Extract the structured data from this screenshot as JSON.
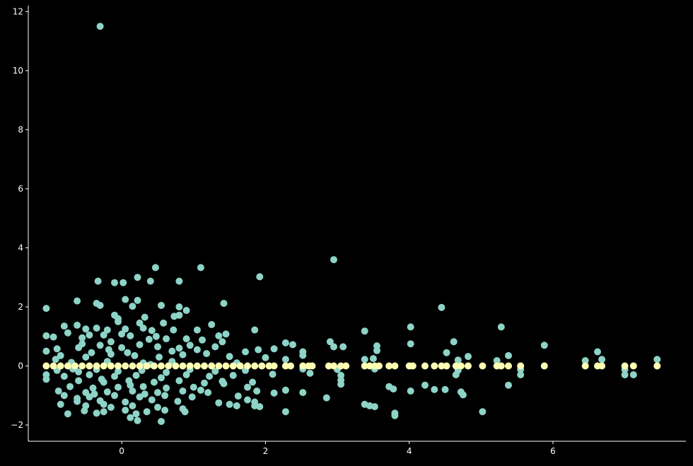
{
  "chart_data": {
    "type": "scatter",
    "title": "",
    "xlabel": "",
    "ylabel": "",
    "xlim": [
      -1.3,
      7.85
    ],
    "ylim": [
      -2.55,
      12.2
    ],
    "xticks": [
      0,
      2,
      4,
      6
    ],
    "yticks": [
      -2,
      0,
      2,
      4,
      6,
      8,
      10,
      12
    ],
    "xtick_labels": [
      "0",
      "2",
      "4",
      "6"
    ],
    "ytick_labels": [
      "−2",
      "0",
      "2",
      "4",
      "6",
      "8",
      "10",
      "12"
    ],
    "grid": false,
    "legend": "none",
    "series": [
      {
        "color": "#8dd3c7",
        "points": [
          [
            -0.3,
            11.5
          ],
          [
            2.95,
            3.6
          ],
          [
            0.47,
            3.33
          ],
          [
            1.1,
            3.33
          ],
          [
            1.92,
            3.02
          ],
          [
            0.22,
            3.0
          ],
          [
            -0.33,
            2.87
          ],
          [
            -0.1,
            2.82
          ],
          [
            0.02,
            2.82
          ],
          [
            0.4,
            2.87
          ],
          [
            0.8,
            2.87
          ],
          [
            -0.62,
            2.2
          ],
          [
            0.22,
            2.22
          ],
          [
            0.05,
            2.25
          ],
          [
            -0.35,
            2.12
          ],
          [
            -0.3,
            2.05
          ],
          [
            0.15,
            2.02
          ],
          [
            0.55,
            2.05
          ],
          [
            0.8,
            2.0
          ],
          [
            0.9,
            1.88
          ],
          [
            1.42,
            2.12
          ],
          [
            -1.05,
            1.95
          ],
          [
            4.45,
            1.98
          ],
          [
            -0.1,
            1.72
          ],
          [
            -0.05,
            1.6
          ],
          [
            0.32,
            1.65
          ],
          [
            0.73,
            1.68
          ],
          [
            0.8,
            1.72
          ],
          [
            -0.05,
            1.5
          ],
          [
            0.25,
            1.45
          ],
          [
            0.58,
            1.45
          ],
          [
            3.38,
            1.18
          ],
          [
            4.02,
            1.32
          ],
          [
            5.28,
            1.32
          ],
          [
            1.85,
            1.22
          ],
          [
            1.25,
            1.4
          ],
          [
            1.05,
            1.22
          ],
          [
            -0.8,
            1.35
          ],
          [
            -0.62,
            1.38
          ],
          [
            -0.5,
            1.25
          ],
          [
            -0.35,
            1.28
          ],
          [
            -0.2,
            1.22
          ],
          [
            0.05,
            1.25
          ],
          [
            0.3,
            1.28
          ],
          [
            0.42,
            1.2
          ],
          [
            0.72,
            1.22
          ],
          [
            -1.05,
            1.02
          ],
          [
            -0.95,
            0.98
          ],
          [
            -0.75,
            1.12
          ],
          [
            -0.55,
            0.95
          ],
          [
            -0.25,
            1.05
          ],
          [
            0.12,
            1.02
          ],
          [
            0.38,
            0.9
          ],
          [
            0.62,
            0.92
          ],
          [
            0.9,
            0.92
          ],
          [
            1.12,
            0.88
          ],
          [
            1.35,
            1.02
          ],
          [
            1.45,
            1.08
          ],
          [
            1.4,
            0.82
          ],
          [
            2.28,
            0.78
          ],
          [
            2.38,
            0.72
          ],
          [
            2.9,
            0.82
          ],
          [
            3.08,
            0.65
          ],
          [
            4.02,
            0.75
          ],
          [
            4.62,
            0.82
          ],
          [
            5.88,
            0.7
          ],
          [
            -1.05,
            0.5
          ],
          [
            -0.9,
            0.58
          ],
          [
            -0.6,
            0.62
          ],
          [
            -0.3,
            0.7
          ],
          [
            0.0,
            0.62
          ],
          [
            0.25,
            0.72
          ],
          [
            0.5,
            0.65
          ],
          [
            0.8,
            0.6
          ],
          [
            1.05,
            0.55
          ],
          [
            1.3,
            0.65
          ],
          [
            1.72,
            0.48
          ],
          [
            1.9,
            0.55
          ],
          [
            2.12,
            0.58
          ],
          [
            2.52,
            0.48
          ],
          [
            2.52,
            0.36
          ],
          [
            2.95,
            0.65
          ],
          [
            3.55,
            0.68
          ],
          [
            3.55,
            0.52
          ],
          [
            4.52,
            0.45
          ],
          [
            4.82,
            0.32
          ],
          [
            5.38,
            0.35
          ],
          [
            6.62,
            0.48
          ],
          [
            -0.85,
            0.35
          ],
          [
            -0.5,
            0.3
          ],
          [
            -0.15,
            0.4
          ],
          [
            0.18,
            0.35
          ],
          [
            0.52,
            0.3
          ],
          [
            0.85,
            0.38
          ],
          [
            1.18,
            0.42
          ],
          [
            1.5,
            0.32
          ],
          [
            2.0,
            0.28
          ],
          [
            2.28,
            0.22
          ],
          [
            3.38,
            0.22
          ],
          [
            3.5,
            0.25
          ],
          [
            4.68,
            0.2
          ],
          [
            5.22,
            0.18
          ],
          [
            6.45,
            0.18
          ],
          [
            6.68,
            0.22
          ],
          [
            7.45,
            0.22
          ],
          [
            -0.7,
            0.12
          ],
          [
            -0.2,
            0.15
          ],
          [
            0.3,
            0.1
          ],
          [
            0.7,
            0.15
          ],
          [
            1.6,
            0.1
          ],
          [
            -0.9,
            -0.15
          ],
          [
            -0.6,
            -0.2
          ],
          [
            -0.35,
            -0.12
          ],
          [
            -0.05,
            -0.18
          ],
          [
            0.28,
            -0.15
          ],
          [
            0.62,
            -0.22
          ],
          [
            0.95,
            -0.12
          ],
          [
            1.3,
            -0.18
          ],
          [
            1.72,
            -0.15
          ],
          [
            2.52,
            -0.1
          ],
          [
            3.0,
            -0.12
          ],
          [
            3.52,
            -0.1
          ],
          [
            4.68,
            -0.15
          ],
          [
            5.55,
            -0.12
          ],
          [
            7.0,
            -0.12
          ],
          [
            -1.05,
            -0.3
          ],
          [
            -0.8,
            -0.35
          ],
          [
            -0.45,
            -0.3
          ],
          [
            -0.1,
            -0.35
          ],
          [
            0.2,
            -0.32
          ],
          [
            0.55,
            -0.4
          ],
          [
            0.9,
            -0.3
          ],
          [
            1.22,
            -0.35
          ],
          [
            1.55,
            -0.32
          ],
          [
            2.1,
            -0.28
          ],
          [
            2.62,
            -0.25
          ],
          [
            3.05,
            -0.32
          ],
          [
            4.65,
            -0.3
          ],
          [
            5.55,
            -0.3
          ],
          [
            7.0,
            -0.3
          ],
          [
            7.12,
            -0.3
          ],
          [
            -1.05,
            -0.45
          ],
          [
            -0.6,
            -0.5
          ],
          [
            -0.25,
            -0.55
          ],
          [
            0.1,
            -0.5
          ],
          [
            0.45,
            -0.55
          ],
          [
            0.8,
            -0.5
          ],
          [
            1.15,
            -0.58
          ],
          [
            1.4,
            -0.52
          ],
          [
            1.82,
            -0.55
          ],
          [
            3.05,
            -0.48
          ],
          [
            -0.72,
            -0.7
          ],
          [
            -0.4,
            -0.75
          ],
          [
            -0.05,
            -0.72
          ],
          [
            0.3,
            -0.7
          ],
          [
            0.62,
            -0.75
          ],
          [
            1.0,
            -0.72
          ],
          [
            1.42,
            -0.6
          ],
          [
            1.75,
            -0.72
          ],
          [
            3.05,
            -0.62
          ],
          [
            3.72,
            -0.7
          ],
          [
            5.38,
            -0.65
          ],
          [
            4.22,
            -0.65
          ],
          [
            -0.88,
            -0.85
          ],
          [
            -0.5,
            -0.9
          ],
          [
            -0.2,
            -0.88
          ],
          [
            0.15,
            -0.85
          ],
          [
            0.5,
            -0.9
          ],
          [
            0.85,
            -0.85
          ],
          [
            1.2,
            -0.9
          ],
          [
            1.88,
            -0.85
          ],
          [
            2.28,
            -0.82
          ],
          [
            2.52,
            -0.9
          ],
          [
            3.78,
            -0.78
          ],
          [
            4.02,
            -0.85
          ],
          [
            4.35,
            -0.8
          ],
          [
            4.5,
            -0.8
          ],
          [
            4.72,
            -0.88
          ],
          [
            -0.8,
            -1.0
          ],
          [
            -0.45,
            -1.05
          ],
          [
            -0.1,
            -1.0
          ],
          [
            0.25,
            -1.05
          ],
          [
            0.6,
            -1.0
          ],
          [
            0.98,
            -1.05
          ],
          [
            1.62,
            -1.02
          ],
          [
            2.12,
            -0.92
          ],
          [
            2.85,
            -1.08
          ],
          [
            4.75,
            -0.98
          ],
          [
            -0.62,
            -1.2
          ],
          [
            -0.3,
            -1.18
          ],
          [
            0.05,
            -1.22
          ],
          [
            0.42,
            -1.15
          ],
          [
            0.78,
            -1.2
          ],
          [
            1.35,
            -1.25
          ],
          [
            1.5,
            -1.3
          ],
          [
            1.75,
            -1.15
          ],
          [
            1.85,
            -1.22
          ],
          [
            -0.85,
            -1.3
          ],
          [
            -0.5,
            -1.35
          ],
          [
            -0.15,
            -1.4
          ],
          [
            0.15,
            -1.35
          ],
          [
            0.5,
            -1.4
          ],
          [
            0.85,
            -1.45
          ],
          [
            1.6,
            -1.35
          ],
          [
            1.85,
            -1.35
          ],
          [
            1.92,
            -1.38
          ],
          [
            3.38,
            -1.3
          ],
          [
            3.45,
            -1.35
          ],
          [
            3.52,
            -1.38
          ],
          [
            -0.52,
            -1.52
          ],
          [
            -0.25,
            -1.55
          ],
          [
            0.05,
            -1.5
          ],
          [
            0.35,
            -1.55
          ],
          [
            0.6,
            -1.5
          ],
          [
            0.88,
            -1.55
          ],
          [
            -0.75,
            -1.62
          ],
          [
            -0.35,
            -1.6
          ],
          [
            0.2,
            -1.62
          ],
          [
            2.28,
            -1.55
          ],
          [
            3.8,
            -1.6
          ],
          [
            3.8,
            -1.68
          ],
          [
            5.02,
            -1.55
          ],
          [
            0.22,
            -1.85
          ],
          [
            0.55,
            -1.88
          ],
          [
            0.12,
            -1.75
          ],
          [
            -0.68,
            -0.1
          ],
          [
            -0.42,
            0.45
          ],
          [
            -0.15,
            0.82
          ],
          [
            0.08,
            0.45
          ],
          [
            -0.28,
            -0.45
          ],
          [
            0.4,
            0.05
          ],
          [
            -0.55,
            0.75
          ],
          [
            -0.38,
            -0.95
          ],
          [
            0.12,
            -0.65
          ],
          [
            -0.18,
            0.55
          ],
          [
            0.7,
            0.5
          ],
          [
            -0.92,
            0.22
          ],
          [
            0.32,
            -0.95
          ],
          [
            -0.62,
            -1.1
          ],
          [
            0.0,
            1.08
          ],
          [
            -0.45,
            1.05
          ],
          [
            0.95,
            0.7
          ],
          [
            1.1,
            -0.82
          ],
          [
            -0.25,
            -1.3
          ],
          [
            0.48,
            1.0
          ]
        ]
      },
      {
        "color": "#ffffb3",
        "points": [
          [
            -1.05,
            0
          ],
          [
            -0.95,
            0
          ],
          [
            -0.85,
            0
          ],
          [
            -0.75,
            0
          ],
          [
            -0.65,
            0
          ],
          [
            -0.55,
            0
          ],
          [
            -0.45,
            0
          ],
          [
            -0.35,
            0
          ],
          [
            -0.25,
            0
          ],
          [
            -0.15,
            0
          ],
          [
            -0.05,
            0
          ],
          [
            0.05,
            0
          ],
          [
            0.15,
            0
          ],
          [
            0.25,
            0
          ],
          [
            0.35,
            0
          ],
          [
            0.45,
            0
          ],
          [
            0.55,
            0
          ],
          [
            0.65,
            0
          ],
          [
            0.75,
            0
          ],
          [
            0.85,
            0
          ],
          [
            0.95,
            0
          ],
          [
            1.05,
            0
          ],
          [
            1.15,
            0
          ],
          [
            1.25,
            0
          ],
          [
            1.35,
            0
          ],
          [
            1.45,
            0
          ],
          [
            1.55,
            0
          ],
          [
            1.65,
            0
          ],
          [
            1.75,
            0
          ],
          [
            1.85,
            0
          ],
          [
            1.95,
            0
          ],
          [
            2.05,
            0
          ],
          [
            2.12,
            0
          ],
          [
            2.28,
            0
          ],
          [
            2.35,
            0
          ],
          [
            2.52,
            0
          ],
          [
            2.6,
            0
          ],
          [
            2.65,
            0
          ],
          [
            2.88,
            0
          ],
          [
            2.95,
            0
          ],
          [
            3.05,
            0
          ],
          [
            3.12,
            0
          ],
          [
            3.38,
            0
          ],
          [
            3.45,
            0
          ],
          [
            3.52,
            0
          ],
          [
            3.58,
            0
          ],
          [
            3.72,
            0
          ],
          [
            3.8,
            0
          ],
          [
            4.0,
            0
          ],
          [
            4.05,
            0
          ],
          [
            4.22,
            0
          ],
          [
            4.35,
            0
          ],
          [
            4.45,
            0
          ],
          [
            4.52,
            0
          ],
          [
            4.65,
            0
          ],
          [
            4.72,
            0
          ],
          [
            4.82,
            0
          ],
          [
            5.02,
            0
          ],
          [
            5.22,
            0
          ],
          [
            5.28,
            0
          ],
          [
            5.38,
            0
          ],
          [
            5.55,
            0
          ],
          [
            5.88,
            0
          ],
          [
            6.45,
            0
          ],
          [
            6.62,
            0
          ],
          [
            6.68,
            0
          ],
          [
            7.0,
            0
          ],
          [
            7.12,
            0
          ],
          [
            7.45,
            0
          ]
        ]
      }
    ]
  }
}
